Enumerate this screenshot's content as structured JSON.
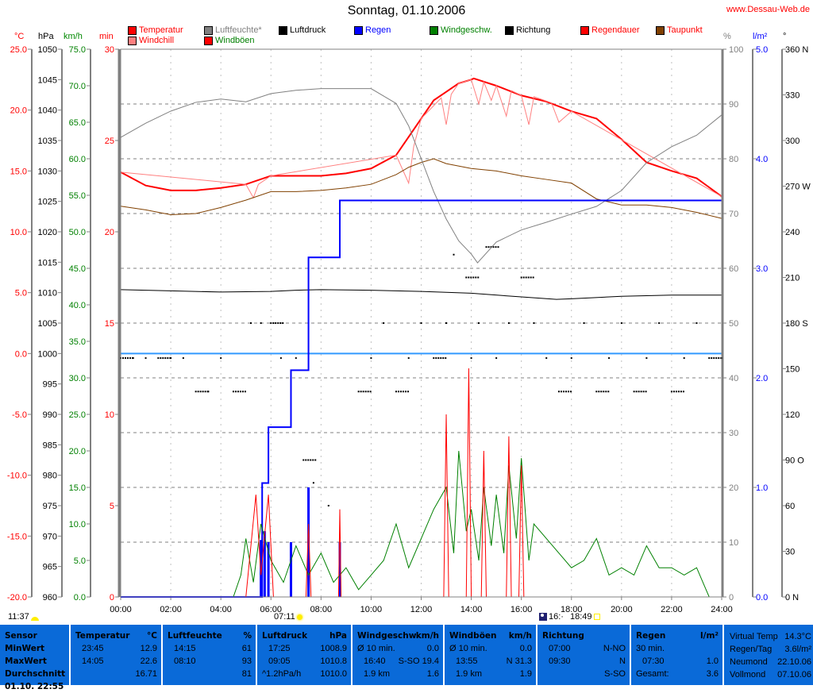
{
  "title": "Sonntag, 01.10.2006",
  "site": "www.Dessau-Web.de",
  "legend": [
    {
      "label": "Temperatur",
      "square": "#ff0000",
      "text": "#ff0000"
    },
    {
      "label": "Luftfeuchte*",
      "square": "#808080",
      "text": "#808080"
    },
    {
      "label": "Luftdruck",
      "square": "#000000",
      "text": "#000000"
    },
    {
      "label": "Regen",
      "square": "#0000ff",
      "text": "#0000ff"
    },
    {
      "label": "Windgeschw.",
      "square": "#008000",
      "text": "#008000"
    },
    {
      "label": "Richtung",
      "square": "#000000",
      "text": "#000000"
    },
    {
      "label": "Regendauer",
      "square": "#ff0000",
      "text": "#ff0000"
    },
    {
      "label": "Taupunkt",
      "square": "#804000",
      "text": "#ff0000"
    },
    {
      "label": "Windchill",
      "square": "#ff8080",
      "text": "#ff0000"
    },
    {
      "label": "Windböen",
      "square": "#ff0000",
      "text": "#008000"
    }
  ],
  "units": {
    "temp": "°C",
    "pressure": "hPa",
    "wind": "km/h",
    "minutes": "min",
    "humidity": "%",
    "rain": "l/m²",
    "direction": "°"
  },
  "astro": {
    "moonrise": "11:37",
    "sunrise": "07:11",
    "moonset": "16:·",
    "sunset": "18:49"
  },
  "chart_data": {
    "type": "line",
    "title": "Sonntag, 01.10.2006",
    "x_ticks": [
      "00:00",
      "02:00",
      "04:00",
      "06:00",
      "08:00",
      "10:00",
      "12:00",
      "14:00",
      "16:00",
      "18:00",
      "20:00",
      "22:00",
      "24:00"
    ],
    "xlim": [
      0,
      24
    ],
    "grid": true,
    "axes": {
      "temp": {
        "unit": "°C",
        "range": [
          -20,
          25
        ],
        "ticks": [
          "25.0",
          "20.0",
          "15.0",
          "10.0",
          "5.0",
          "0.0",
          "-5.0",
          "-10.0",
          "-15.0",
          "-20.0"
        ],
        "color": "#ff0000"
      },
      "pressure": {
        "unit": "hPa",
        "range": [
          960,
          1050
        ],
        "ticks": [
          "1050",
          "1045",
          "1040",
          "1035",
          "1030",
          "1025",
          "1020",
          "1015",
          "1010",
          "1005",
          "1000",
          "995",
          "990",
          "985",
          "980",
          "975",
          "970",
          "965",
          "960"
        ],
        "color": "#000000"
      },
      "wind": {
        "unit": "km/h",
        "range": [
          0,
          75
        ],
        "ticks": [
          "75.0",
          "70.0",
          "65.0",
          "60.0",
          "55.0",
          "50.0",
          "45.0",
          "40.0",
          "35.0",
          "30.0",
          "25.0",
          "20.0",
          "15.0",
          "10.0",
          "5.0",
          "0.0"
        ],
        "color": "#008000"
      },
      "minutes": {
        "unit": "min",
        "range": [
          0,
          30
        ],
        "ticks": [
          "30",
          "25",
          "20",
          "15",
          "10",
          "5",
          "0"
        ],
        "color": "#ff0000"
      },
      "humidity": {
        "unit": "%",
        "range": [
          0,
          100
        ],
        "ticks": [
          "100",
          "90",
          "80",
          "70",
          "60",
          "50",
          "40",
          "30",
          "20",
          "10",
          "0"
        ],
        "color": "#808080"
      },
      "rain": {
        "unit": "l/m²",
        "range": [
          0,
          5
        ],
        "ticks": [
          "5.0",
          "4.0",
          "3.0",
          "2.0",
          "1.0",
          "0.0"
        ],
        "color": "#0000ff"
      },
      "direction": {
        "unit": "°",
        "range": [
          0,
          360
        ],
        "ticks": [
          "360 N",
          "330",
          "300",
          "270 W",
          "240",
          "210",
          "180 S",
          "150",
          "120",
          "90  O",
          "60",
          "30",
          "0   N"
        ],
        "color": "#000000"
      }
    },
    "series": [
      {
        "name": "Temperatur",
        "axis": "temp",
        "color": "#ff0000",
        "x": [
          0,
          1,
          2,
          3,
          4,
          5,
          6,
          7,
          8,
          9,
          10,
          11,
          12,
          12.5,
          13,
          13.5,
          14,
          14.1,
          15,
          16,
          17,
          18,
          19,
          20,
          21,
          22,
          23,
          24
        ],
        "y": [
          14.9,
          13.8,
          13.4,
          13.4,
          13.6,
          13.9,
          14.6,
          14.6,
          14.6,
          14.8,
          15.2,
          16.3,
          19.3,
          20.8,
          21.5,
          22.2,
          22.5,
          22.6,
          22.0,
          21.2,
          20.7,
          19.9,
          19.3,
          17.6,
          15.7,
          15.0,
          14.4,
          12.9
        ]
      },
      {
        "name": "Windchill",
        "axis": "temp",
        "color": "#ff8080",
        "x": [
          0,
          5,
          5.3,
          5.5,
          6,
          11,
          11.5,
          11.7,
          12,
          12.8,
          13,
          13.2,
          13.5,
          14,
          14.3,
          14.5,
          14.8,
          15,
          15.4,
          15.6,
          16,
          16.3,
          16.5,
          17.2,
          17.5,
          18,
          24
        ],
        "y": [
          14.9,
          13.9,
          12.8,
          13.9,
          14.6,
          16.3,
          14.0,
          17.0,
          19.3,
          21.0,
          18.8,
          21.3,
          22.2,
          22.5,
          20.5,
          22.3,
          20.8,
          22.0,
          19.5,
          21.6,
          21.2,
          18.8,
          21.1,
          20.6,
          19.0,
          19.9,
          12.9
        ]
      },
      {
        "name": "Taupunkt",
        "axis": "temp",
        "color": "#804000",
        "x": [
          0,
          1,
          2,
          3,
          4,
          5,
          6,
          7,
          8,
          9,
          10,
          11,
          11.5,
          12,
          12.5,
          13,
          14,
          15,
          16,
          17,
          18,
          19,
          20,
          21,
          22,
          23,
          24
        ],
        "y": [
          12.1,
          11.8,
          11.4,
          11.5,
          12.0,
          12.6,
          13.3,
          13.3,
          13.4,
          13.6,
          13.9,
          14.7,
          15.3,
          15.7,
          16.0,
          15.6,
          15.2,
          15.0,
          14.6,
          14.3,
          14.0,
          12.7,
          12.2,
          12.2,
          12.0,
          11.6,
          11.1
        ]
      },
      {
        "name": "Luftfeuchte*",
        "axis": "humidity",
        "color": "#808080",
        "x": [
          0,
          1,
          2,
          3,
          4,
          5,
          6,
          7,
          8,
          9,
          10,
          11,
          11.5,
          12,
          12.5,
          13,
          13.5,
          14,
          14.25,
          15,
          16,
          17,
          18,
          19,
          20,
          21,
          22,
          23,
          24
        ],
        "y": [
          83.9,
          86.5,
          88.7,
          90.3,
          90.9,
          90.4,
          91.9,
          92.5,
          92.8,
          92.8,
          92.8,
          90.1,
          86,
          80,
          74,
          69,
          65,
          62.6,
          61,
          64.8,
          67,
          68.4,
          69.9,
          71.3,
          74.2,
          79.3,
          82.2,
          84.3,
          88
        ]
      },
      {
        "name": "Luftdruck",
        "axis": "pressure",
        "color": "#000000",
        "x": [
          0,
          2,
          4,
          6,
          7,
          8,
          10,
          12,
          14,
          16,
          17.4,
          18,
          20,
          22,
          24
        ],
        "y": [
          1010.5,
          1010.3,
          1010.1,
          1010.2,
          1010.4,
          1010.5,
          1010.4,
          1010.2,
          1009.9,
          1009.3,
          1008.9,
          1009.0,
          1009.4,
          1009.6,
          1009.6
        ]
      },
      {
        "name": "Regen",
        "axis": "rain",
        "color": "#0000ff",
        "step": true,
        "x": [
          0,
          5.65,
          5.9,
          6.8,
          7.5,
          8.75,
          24
        ],
        "y": [
          0,
          1.04,
          1.55,
          2.07,
          3.1,
          3.62,
          3.62
        ]
      },
      {
        "name": "Windgeschw.",
        "axis": "wind",
        "color": "#008000",
        "x": [
          0,
          4.5,
          4.8,
          5,
          5.3,
          5.6,
          6,
          6.5,
          7,
          7.5,
          8,
          8.5,
          9,
          9.5,
          10,
          10.5,
          11,
          11.5,
          12,
          12.5,
          13,
          13.3,
          13.5,
          13.8,
          14,
          14.3,
          14.5,
          14.8,
          15,
          15.3,
          15.5,
          15.8,
          16,
          16.3,
          16.5,
          17,
          17.5,
          18,
          18.5,
          19,
          19.5,
          20,
          20.5,
          21,
          21.5,
          22,
          22.5,
          23,
          23.5,
          24
        ],
        "y": [
          0,
          0,
          3,
          8,
          2,
          10,
          5,
          2,
          7,
          3,
          6,
          2,
          4,
          1,
          3,
          5,
          10,
          4,
          8,
          12,
          15,
          6,
          20,
          9,
          12,
          5,
          15,
          7,
          14,
          6,
          18,
          8,
          19,
          5,
          10,
          8,
          6,
          4,
          5,
          8,
          3,
          4,
          3,
          7,
          4,
          4,
          3,
          4,
          0,
          0
        ]
      },
      {
        "name": "Windböen",
        "axis": "wind",
        "color": "#ff0000",
        "x": [
          0,
          5,
          5.4,
          5.6,
          5.9,
          6.1,
          7.4,
          7.5,
          7.6,
          8.7,
          8.75,
          8.8,
          12.9,
          13,
          13.1,
          13.8,
          13.9,
          14,
          14.4,
          14.5,
          14.6,
          15.4,
          15.5,
          15.6,
          15.9,
          16,
          16.1,
          24
        ],
        "y": [
          0,
          0,
          14,
          3,
          14,
          0,
          0,
          10,
          0,
          0,
          12,
          0,
          0,
          25,
          0,
          0,
          31.3,
          0,
          0,
          20,
          0,
          0,
          22,
          0,
          0,
          18,
          0,
          0
        ]
      }
    ],
    "rain_bars": {
      "axis": "rain",
      "color": "#0000ff",
      "x": [
        5.6,
        5.75,
        5.9,
        6.8,
        7.5,
        8.75
      ],
      "y": [
        0.52,
        0.6,
        0.5,
        0.5,
        1.0,
        0.5
      ]
    },
    "reference_line": {
      "axis": "temp",
      "value": 0,
      "color": "#3399ff"
    },
    "direction_points": {
      "axis": "direction",
      "color": "#000000",
      "x": [
        0,
        0.5,
        1,
        1.5,
        2,
        2.5,
        3,
        3.5,
        4,
        4.5,
        5.2,
        5.6,
        6,
        6.4,
        7,
        7.3,
        7.7,
        8.3,
        9.5,
        10,
        10.5,
        11,
        11.5,
        12,
        12.5,
        13,
        13.3,
        13.8,
        14,
        14.3,
        14.6,
        15,
        15.5,
        16,
        16.5,
        17,
        17.5,
        18,
        18.5,
        19,
        19.5,
        20,
        20.5,
        21,
        21.5,
        22,
        22.5,
        23,
        23.5,
        24
      ],
      "y": [
        157,
        157,
        157,
        157,
        157,
        157,
        135,
        135,
        157,
        135,
        180,
        180,
        180,
        157,
        157,
        90,
        75,
        60,
        135,
        157,
        180,
        135,
        157,
        180,
        157,
        180,
        225,
        210,
        157,
        180,
        230,
        157,
        180,
        210,
        180,
        157,
        135,
        157,
        180,
        135,
        157,
        180,
        135,
        157,
        180,
        135,
        157,
        180,
        157,
        157
      ]
    }
  },
  "table": {
    "sensor": {
      "header": "Sensor",
      "rows": [
        "MinWert",
        "MaxWert",
        "Durchschnitt",
        "01.10. 22:55"
      ]
    },
    "temperature": {
      "header": "Temperatur",
      "unit": "°C",
      "rows": [
        [
          "23:45",
          "12.9"
        ],
        [
          "14:05",
          "22.6"
        ],
        [
          "",
          "16.71"
        ]
      ]
    },
    "humidity": {
      "header": "Luftfeuchte",
      "unit": "%",
      "rows": [
        [
          "14:15",
          "61"
        ],
        [
          "08:10",
          "93"
        ],
        [
          "",
          "81"
        ]
      ]
    },
    "pressure": {
      "header": "Luftdruck",
      "unit": "hPa",
      "rows": [
        [
          "17:25",
          "1008.9"
        ],
        [
          "09:05",
          "1010.8"
        ],
        [
          "^1.2hPa/h",
          "1010.0"
        ]
      ]
    },
    "wind": {
      "header": "Windgeschw.",
      "unit": "km/h",
      "rows": [
        [
          "Ø 10 min.",
          "0.0"
        ],
        [
          "16:40",
          "S-SO 19.4"
        ],
        [
          "1.9 km",
          "1.6"
        ]
      ]
    },
    "gusts": {
      "header": "Windböen",
      "unit": "km/h",
      "rows": [
        [
          "Ø 10 min.",
          "0.0"
        ],
        [
          "13:55",
          "N 31.3"
        ],
        [
          "1.9 km",
          "1.9"
        ]
      ]
    },
    "direction": {
      "header": "Richtung",
      "unit": "",
      "rows": [
        [
          "07:00",
          "N-NO"
        ],
        [
          "09:30",
          "N"
        ],
        [
          "",
          "S-SO"
        ]
      ]
    },
    "rain": {
      "header": "Regen",
      "unit": "l/m²",
      "rows": [
        [
          "30 min.",
          ""
        ],
        [
          "07:30",
          "1.0"
        ],
        [
          "Gesamt:",
          "3.6"
        ]
      ]
    },
    "extra": {
      "rows": [
        [
          "Virtual Temp",
          "14.3°C"
        ],
        [
          "Regen/Tag",
          "3.6l/m²"
        ],
        [
          "Neumond",
          "22.10.06"
        ],
        [
          "Vollmond",
          "07.10.06"
        ]
      ]
    }
  }
}
